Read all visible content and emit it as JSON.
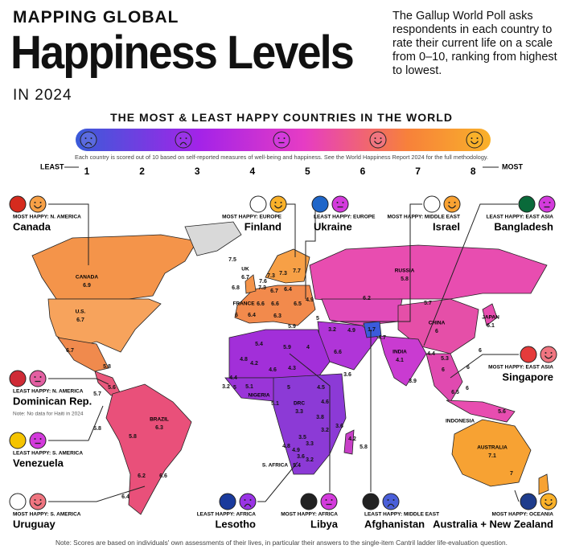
{
  "header": {
    "kicker": "MAPPING GLOBAL",
    "title": "Happiness Levels",
    "subtitle": "IN 2024",
    "description": "The Gallup World Poll asks respondents in each country to rate their current life on a scale from 0–10, ranking from highest to lowest."
  },
  "scale": {
    "title": "THE MOST & LEAST HAPPY COUNTRIES IN THE WORLD",
    "note": "Each country is scored out of 10 based on self-reported measures of well-being and happiness. See the World Happiness Report 2024 for the full methodology.",
    "least": "LEAST",
    "most": "MOST",
    "ticks": [
      1,
      2,
      3,
      4,
      5,
      6,
      7,
      8
    ]
  },
  "callouts": [
    {
      "label": "MOST HAPPY: N. AMERICA",
      "country": "Canada"
    },
    {
      "label": "MOST HAPPY: EUROPE",
      "country": "Finland"
    },
    {
      "label": "LEAST HAPPY: EUROPE",
      "country": "Ukraine"
    },
    {
      "label": "MOST HAPPY: MIDDLE EAST",
      "country": "Israel"
    },
    {
      "label": "LEAST HAPPY: EAST ASIA",
      "country": "Bangladesh"
    },
    {
      "label": "LEAST HAPPY: N. AMERICA",
      "country": "Dominican Rep.",
      "note": "Note: No data for Haiti in 2024"
    },
    {
      "label": "MOST HAPPY: EAST ASIA",
      "country": "Singapore"
    },
    {
      "label": "LEAST HAPPY: S. AMERICA",
      "country": "Venezuela"
    },
    {
      "label": "MOST HAPPY: S. AMERICA",
      "country": "Uruguay"
    },
    {
      "label": "LEAST HAPPY: AFRICA",
      "country": "Lesotho"
    },
    {
      "label": "MOST HAPPY: AFRICA",
      "country": "Libya"
    },
    {
      "label": "LEAST HAPPY: MIDDLE EAST",
      "country": "Afghanistan"
    },
    {
      "label": "MOST HAPPY: OCEANIA",
      "country": "Australia + New Zealand"
    }
  ],
  "map_labels": [
    {
      "name": "CANADA",
      "score": 6.9
    },
    {
      "name": "U.S.",
      "score": 6.7
    },
    {
      "name": "RUSSIA",
      "score": 5.8
    },
    {
      "name": "CHINA",
      "score": 6.0
    },
    {
      "name": "JAPAN",
      "score": 6.1
    },
    {
      "name": "INDIA",
      "score": 4.1
    },
    {
      "name": "BRAZIL",
      "score": 6.3
    },
    {
      "name": "AUSTRALIA",
      "score": 7.1
    },
    {
      "name": "DRC",
      "score": 3.3
    },
    {
      "name": "UK",
      "score": 6.7
    },
    {
      "name": "FRANCE"
    },
    {
      "name": "NIGERIA"
    },
    {
      "name": "S. AFRICA"
    },
    {
      "name": "INDONESIA"
    },
    {
      "score": 7.5
    },
    {
      "score": 7.6
    },
    {
      "score": 7.3
    },
    {
      "score": 7.3
    },
    {
      "score": 7.7
    },
    {
      "score": 6.8
    },
    {
      "score": 7.3
    },
    {
      "score": 6.7
    },
    {
      "score": 6.4
    },
    {
      "score": 6.6
    },
    {
      "score": 6.6
    },
    {
      "score": 6.5
    },
    {
      "score": 6.0
    },
    {
      "score": 6.4
    },
    {
      "score": 6.3
    },
    {
      "score": 4.9
    },
    {
      "score": 6.2
    },
    {
      "score": 5.7
    },
    {
      "score": 5.9
    },
    {
      "score": 5.0
    },
    {
      "score": 3.2
    },
    {
      "score": 4.9
    },
    {
      "score": 1.7
    },
    {
      "score": 4.7
    },
    {
      "score": 5.3
    },
    {
      "score": 6.0
    },
    {
      "score": 6.0
    },
    {
      "score": 4.4
    },
    {
      "score": 6.0
    },
    {
      "score": 5.4
    },
    {
      "score": 5.9
    },
    {
      "score": 4.0
    },
    {
      "score": 6.6
    },
    {
      "score": 4.8
    },
    {
      "score": 4.2
    },
    {
      "score": 4.6
    },
    {
      "score": 4.3
    },
    {
      "score": 3.6
    },
    {
      "score": 3.9
    },
    {
      "score": 4.4
    },
    {
      "score": 5.0
    },
    {
      "score": 5.1
    },
    {
      "score": 3.2
    },
    {
      "score": 5.0
    },
    {
      "score": 4.5
    },
    {
      "score": 6.5
    },
    {
      "score": 6.0
    },
    {
      "score": 5.6
    },
    {
      "score": 4.6
    },
    {
      "score": 3.8
    },
    {
      "score": 3.2
    },
    {
      "score": 3.5
    },
    {
      "score": 3.3
    },
    {
      "score": 3.6
    },
    {
      "score": 4.2
    },
    {
      "score": 5.8
    },
    {
      "score": 4.8
    },
    {
      "score": 4.9
    },
    {
      "score": 3.6
    },
    {
      "score": 3.2
    },
    {
      "score": 5.4
    },
    {
      "score": 6.7
    },
    {
      "score": 5.8
    },
    {
      "score": 5.6
    },
    {
      "score": 5.7
    },
    {
      "score": 5.8
    },
    {
      "score": 5.8
    },
    {
      "score": 6.2
    },
    {
      "score": 6.6
    },
    {
      "score": 6.4
    },
    {
      "score": 7.0
    },
    {
      "score": 5.1
    }
  ],
  "footer": "Note: Scores are based on individuals' own assessments of their lives, in particular their answers to the single-item Cantril ladder life-evaluation question."
}
